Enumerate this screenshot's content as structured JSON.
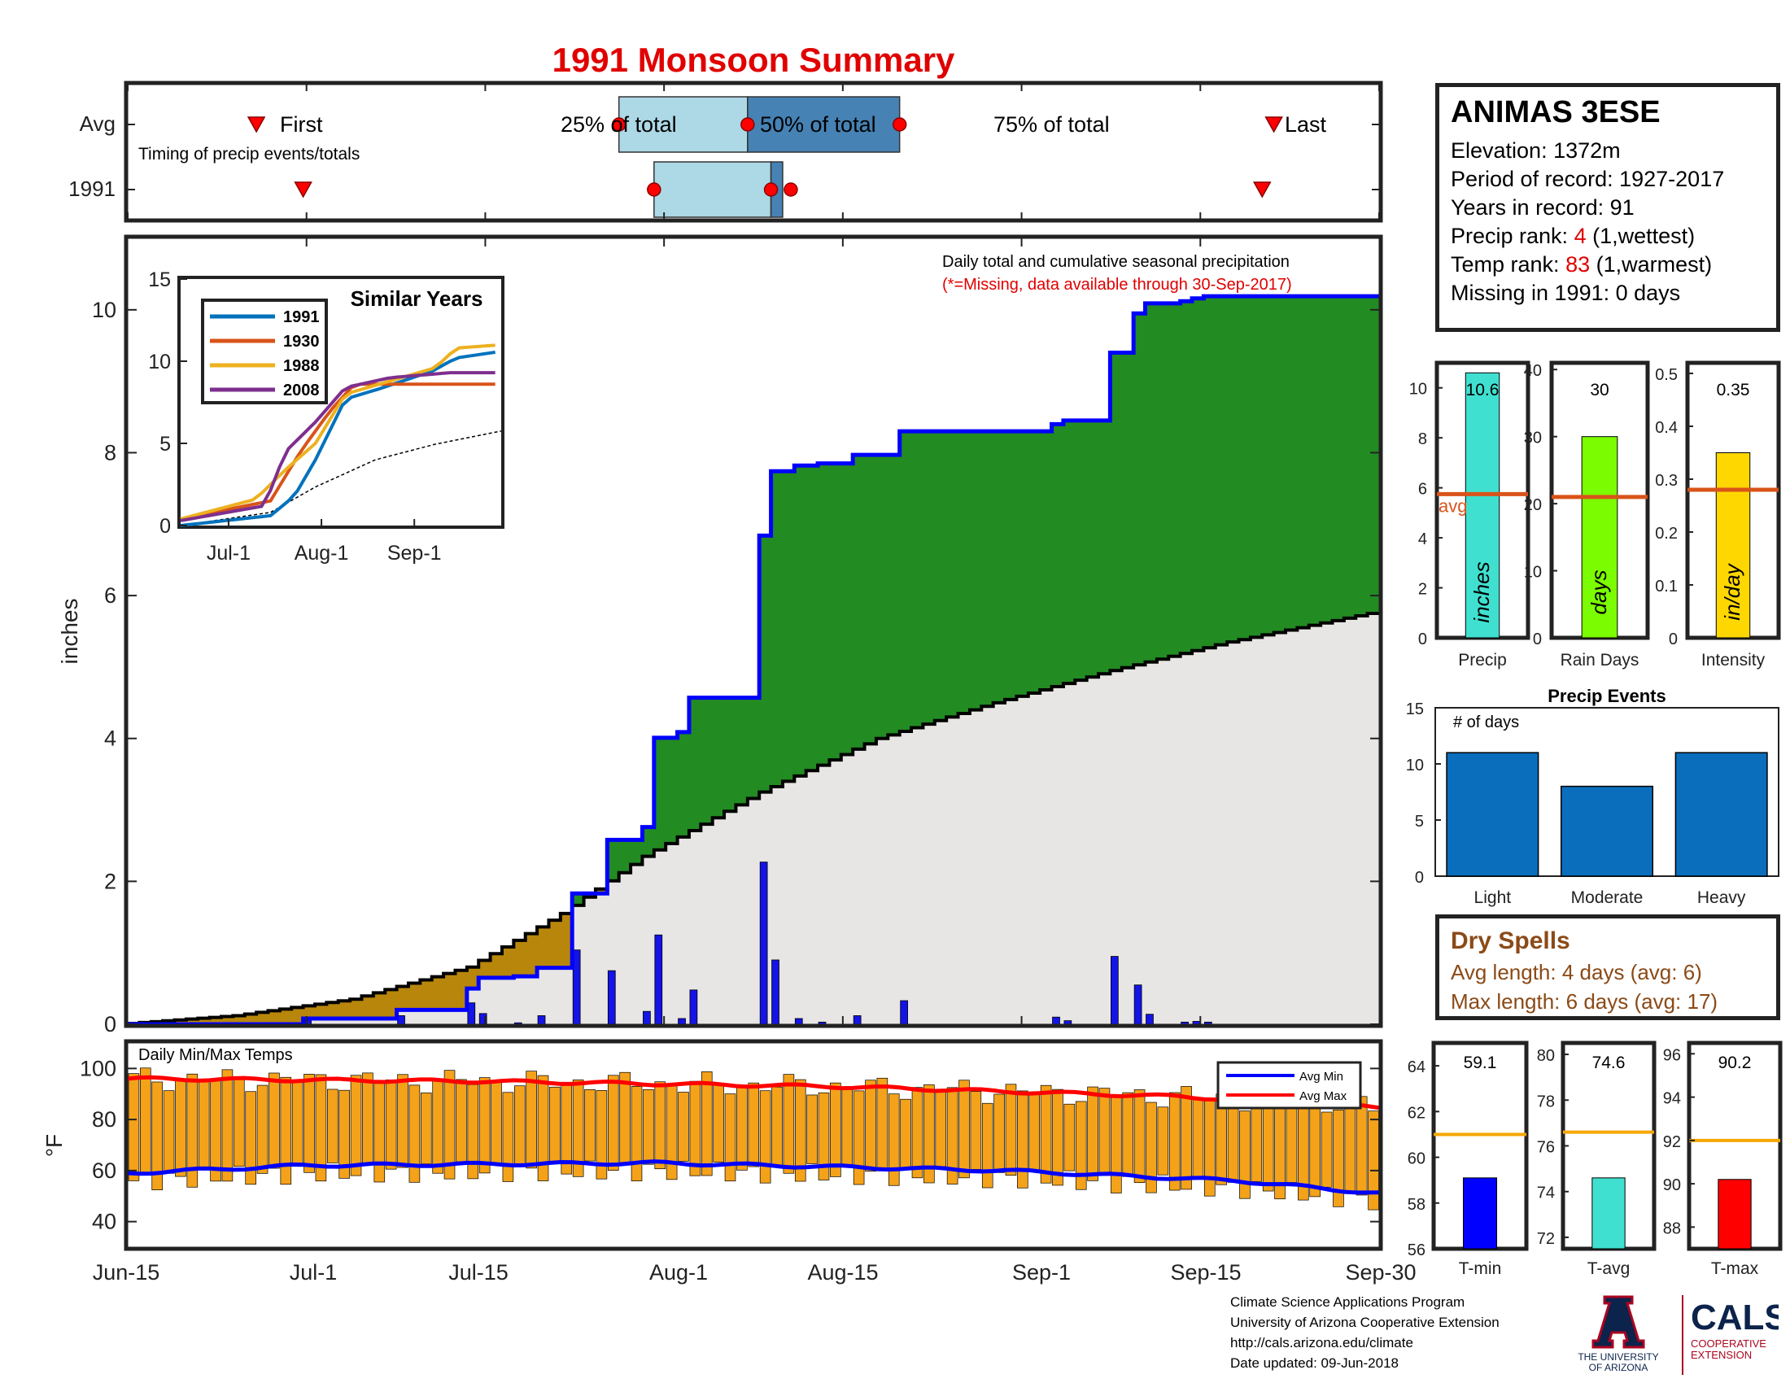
{
  "title": "1991 Monsoon Summary",
  "colors": {
    "title": "#e00000",
    "cumulative_blue": "#0000ff",
    "above_avg_green": "#228b22",
    "below_avg_brown": "#b8860b",
    "avg_fill_gray": "#e8e6e4",
    "precip_bar": "#1414e6",
    "temp_bar": "#f4a21a",
    "avg_max_red": "#ff0000",
    "avg_min_blue": "#0000ff",
    "light_blue": "#add8e6",
    "steel_blue": "#4682b4",
    "event_bar": "#0a6ebd",
    "avg_line": "#d95319"
  },
  "timing": {
    "row_labels": [
      "Avg",
      "1991"
    ],
    "subtitle": "Timing of precip events/totals",
    "first_label": "First",
    "last_label": "Last",
    "pct25_label": "25% of total",
    "pct50_label": "50% of total",
    "pct75_label": "75% of total",
    "avg": {
      "first": "Jun-26",
      "p25": "Jul-27",
      "p50": "Aug-07",
      "p75": "Aug-20",
      "last": "Sep-21"
    },
    "y1991": {
      "first": "Jun-30",
      "p25": "Jul-30",
      "p50": "Aug-09",
      "p75": "Aug-10",
      "last": "Sep-20"
    }
  },
  "main_panel": {
    "annotation_line1": "Daily total and cumulative seasonal precipitation",
    "annotation_line2": "(*=Missing, data available through 30-Sep-2017)",
    "ylabel": "inches",
    "y_ticks": [
      "0",
      "2",
      "4",
      "6",
      "8",
      "10"
    ],
    "x_ticks": [
      "Jun-15",
      "Jul-1",
      "Jul-15",
      "Aug-1",
      "Aug-15",
      "Sep-1",
      "Sep-15",
      "Sep-30"
    ]
  },
  "similar_years": {
    "title": "Similar Years",
    "legend": [
      "1991",
      "1930",
      "1988",
      "2008"
    ],
    "colors": [
      "#0072bd",
      "#d95319",
      "#edb120",
      "#7e2f8e"
    ],
    "y_ticks": [
      "0",
      "5",
      "10",
      "15"
    ],
    "x_ticks": [
      "Jul-1",
      "Aug-1",
      "Sep-1"
    ]
  },
  "temps_panel": {
    "title": "Daily Min/Max Temps",
    "ylabel": "°F",
    "y_ticks": [
      "40",
      "60",
      "80",
      "100"
    ],
    "legend": [
      "Avg Min",
      "Avg Max"
    ]
  },
  "station": {
    "name": "ANIMAS 3ESE",
    "elevation_label": "Elevation: 1372m",
    "period_label": "Period of record: 1927-2017",
    "years_label": "Years in record: 91",
    "precip_rank_prefix": "Precip rank: ",
    "precip_rank_value": "4",
    "precip_rank_suffix": " (1,wettest)",
    "temp_rank_prefix": "Temp rank: ",
    "temp_rank_value": "83",
    "temp_rank_suffix": " (1,warmest)",
    "missing_label": "Missing in 1991: 0 days"
  },
  "stat_bars": [
    {
      "name": "Precip",
      "value_label": "10.6",
      "unit": "inches",
      "color": "#40e0d0",
      "avg_label": "avg",
      "y_ticks": [
        "0",
        "2",
        "4",
        "6",
        "8",
        "10"
      ]
    },
    {
      "name": "Rain Days",
      "value_label": "30",
      "unit": "days",
      "color": "#7cfc00",
      "y_ticks": [
        "0",
        "10",
        "20",
        "30",
        "40"
      ]
    },
    {
      "name": "Intensity",
      "value_label": "0.35",
      "unit": "in/day",
      "color": "#ffd700",
      "y_ticks": [
        "0",
        "0.1",
        "0.2",
        "0.3",
        "0.4",
        "0.5"
      ]
    }
  ],
  "precip_events": {
    "title": "Precip Events",
    "ylabel": "# of days",
    "y_ticks": [
      "0",
      "5",
      "10",
      "15"
    ]
  },
  "dry_spells": {
    "title": "Dry Spells",
    "avg_length_label": "Avg length: 4 days (avg: 6)",
    "max_length_label": "Max length: 6 days (avg: 17)"
  },
  "temp_bars": [
    {
      "name": "T-min",
      "value_label": "59.1",
      "color": "#0000ff",
      "y_ticks": [
        "56",
        "58",
        "60",
        "62",
        "64"
      ]
    },
    {
      "name": "T-avg",
      "value_label": "74.6",
      "color": "#40e0d0",
      "y_ticks": [
        "72",
        "74",
        "76",
        "78",
        "80"
      ]
    },
    {
      "name": "T-max",
      "value_label": "90.2",
      "color": "#ff0000",
      "y_ticks": [
        "88",
        "90",
        "92",
        "94",
        "96"
      ]
    }
  ],
  "footer": {
    "line1": "Climate Science Applications Program",
    "line2": "University of Arizona Cooperative Extension",
    "line3": "http://cals.arizona.edu/climate",
    "line4": " Date updated: 09-Jun-2018"
  },
  "logos": {
    "ua_line1": "THE UNIVERSITY",
    "ua_line2": "OF ARIZONA",
    "cals_text": "CALS",
    "cals_line1": "COOPERATIVE",
    "cals_line2": "EXTENSION"
  },
  "chart_data": [
    {
      "type": "area",
      "name": "cumulative_precip",
      "x_start": "Jun-15",
      "x_end": "Sep-30",
      "ylim": [
        0,
        11
      ],
      "daily_precip_events": [
        {
          "day": "Jun-30",
          "value": 0.08
        },
        {
          "day": "Jul-8",
          "value": 0.12
        },
        {
          "day": "Jul-14",
          "value": 0.3
        },
        {
          "day": "Jul-15",
          "value": 0.15
        },
        {
          "day": "Jul-18",
          "value": 0.02
        },
        {
          "day": "Jul-18",
          "value": 0.02
        },
        {
          "day": "Jul-18",
          "value": 0.02
        },
        {
          "day": "Jul-18",
          "value": 0.02
        },
        {
          "day": "Jul-18",
          "value": 0.02
        },
        {
          "day": "Jul-18",
          "value": 0.02
        },
        {
          "day": "Jul-18",
          "value": 0.02
        }
      ],
      "daily_precip": [
        {
          "doy": 15,
          "value": 0.08
        },
        {
          "doy": 23,
          "value": 0.12
        },
        {
          "doy": 29,
          "value": 0.3
        },
        {
          "doy": 30,
          "value": 0.15
        },
        {
          "doy": 33,
          "value": 0.02
        },
        {
          "doy": 35,
          "value": 0.12
        },
        {
          "doy": 38,
          "value": 1.04
        },
        {
          "doy": 41,
          "value": 0.75
        },
        {
          "doy": 44,
          "value": 0.18
        },
        {
          "doy": 45,
          "value": 1.25
        },
        {
          "doy": 47,
          "value": 0.08
        },
        {
          "doy": 48,
          "value": 0.48
        },
        {
          "doy": 54,
          "value": 2.27
        },
        {
          "doy": 55,
          "value": 0.9
        },
        {
          "doy": 57,
          "value": 0.08
        },
        {
          "doy": 59,
          "value": 0.03
        },
        {
          "doy": 62,
          "value": 0.12
        },
        {
          "doy": 66,
          "value": 0.33
        },
        {
          "doy": 79,
          "value": 0.1
        },
        {
          "doy": 80,
          "value": 0.05
        },
        {
          "doy": 84,
          "value": 0.95
        },
        {
          "doy": 86,
          "value": 0.55
        },
        {
          "doy": 87,
          "value": 0.14
        },
        {
          "doy": 90,
          "value": 0.03
        },
        {
          "doy": 91,
          "value": 0.04
        },
        {
          "doy": 92,
          "value": 0.03
        }
      ],
      "cumulative_1991": [
        {
          "doy": 0,
          "value": 0
        },
        {
          "doy": 15,
          "value": 0.08
        },
        {
          "doy": 23,
          "value": 0.2
        },
        {
          "doy": 29,
          "value": 0.5
        },
        {
          "doy": 30,
          "value": 0.65
        },
        {
          "doy": 33,
          "value": 0.67
        },
        {
          "doy": 35,
          "value": 0.79
        },
        {
          "doy": 38,
          "value": 1.83
        },
        {
          "doy": 41,
          "value": 2.58
        },
        {
          "doy": 44,
          "value": 2.76
        },
        {
          "doy": 45,
          "value": 4.01
        },
        {
          "doy": 47,
          "value": 4.09
        },
        {
          "doy": 48,
          "value": 4.57
        },
        {
          "doy": 54,
          "value": 6.84
        },
        {
          "doy": 55,
          "value": 7.74
        },
        {
          "doy": 57,
          "value": 7.82
        },
        {
          "doy": 59,
          "value": 7.85
        },
        {
          "doy": 62,
          "value": 7.97
        },
        {
          "doy": 66,
          "value": 8.3
        },
        {
          "doy": 79,
          "value": 8.4
        },
        {
          "doy": 80,
          "value": 8.45
        },
        {
          "doy": 84,
          "value": 9.4
        },
        {
          "doy": 86,
          "value": 9.95
        },
        {
          "doy": 87,
          "value": 10.09
        },
        {
          "doy": 90,
          "value": 10.12
        },
        {
          "doy": 91,
          "value": 10.16
        },
        {
          "doy": 92,
          "value": 10.19
        },
        {
          "doy": 107,
          "value": 10.6
        }
      ],
      "cumulative_avg": [
        {
          "doy": 0,
          "value": 0
        },
        {
          "doy": 10,
          "value": 0.12
        },
        {
          "doy": 20,
          "value": 0.35
        },
        {
          "doy": 30,
          "value": 0.8
        },
        {
          "doy": 38,
          "value": 1.55
        },
        {
          "doy": 45,
          "value": 2.35
        },
        {
          "doy": 55,
          "value": 3.25
        },
        {
          "doy": 65,
          "value": 4.0
        },
        {
          "doy": 75,
          "value": 4.5
        },
        {
          "doy": 85,
          "value": 4.95
        },
        {
          "doy": 95,
          "value": 5.35
        },
        {
          "doy": 107,
          "value": 5.75
        }
      ]
    },
    {
      "type": "line",
      "name": "similar_years",
      "x_ticks": [
        "Jul-1",
        "Aug-1",
        "Sep-1"
      ],
      "ylim": [
        0,
        15
      ],
      "series": [
        {
          "name": "1991",
          "values": [
            {
              "doy": 0,
              "value": 0
            },
            {
              "doy": 30,
              "value": 0.6
            },
            {
              "doy": 38,
              "value": 1.8
            },
            {
              "doy": 45,
              "value": 4.0
            },
            {
              "doy": 55,
              "value": 7.7
            },
            {
              "doy": 66,
              "value": 8.3
            },
            {
              "doy": 84,
              "value": 9.4
            },
            {
              "doy": 92,
              "value": 10.2
            },
            {
              "doy": 107,
              "value": 10.6
            }
          ]
        },
        {
          "name": "1930",
          "values": [
            {
              "doy": 0,
              "value": 0.4
            },
            {
              "doy": 30,
              "value": 1.5
            },
            {
              "doy": 40,
              "value": 4.5
            },
            {
              "doy": 50,
              "value": 7.0
            },
            {
              "doy": 58,
              "value": 8.6
            },
            {
              "doy": 65,
              "value": 8.6
            },
            {
              "doy": 107,
              "value": 8.6
            }
          ]
        },
        {
          "name": "1988",
          "values": [
            {
              "doy": 0,
              "value": 0.4
            },
            {
              "doy": 25,
              "value": 1.6
            },
            {
              "doy": 35,
              "value": 3.4
            },
            {
              "doy": 45,
              "value": 5.0
            },
            {
              "doy": 55,
              "value": 8.0
            },
            {
              "doy": 70,
              "value": 8.8
            },
            {
              "doy": 85,
              "value": 9.6
            },
            {
              "doy": 92,
              "value": 10.8
            },
            {
              "doy": 107,
              "value": 11.0
            }
          ]
        },
        {
          "name": "2008",
          "values": [
            {
              "doy": 0,
              "value": 0.3
            },
            {
              "doy": 28,
              "value": 1.2
            },
            {
              "doy": 35,
              "value": 4.5
            },
            {
              "doy": 45,
              "value": 6.3
            },
            {
              "doy": 55,
              "value": 8.4
            },
            {
              "doy": 70,
              "value": 9.0
            },
            {
              "doy": 90,
              "value": 9.3
            },
            {
              "doy": 107,
              "value": 9.3
            }
          ]
        }
      ],
      "average_dashed": [
        {
          "doy": 0,
          "value": 0
        },
        {
          "doy": 30,
          "value": 0.8
        },
        {
          "doy": 45,
          "value": 2.35
        },
        {
          "doy": 65,
          "value": 4.0
        },
        {
          "doy": 85,
          "value": 4.95
        },
        {
          "doy": 107,
          "value": 5.75
        }
      ]
    },
    {
      "type": "bar",
      "name": "daily_temps",
      "ylim": [
        30,
        110
      ],
      "avg_max": [
        {
          "doy": 0,
          "value": 96
        },
        {
          "doy": 30,
          "value": 95
        },
        {
          "doy": 60,
          "value": 93
        },
        {
          "doy": 90,
          "value": 89
        },
        {
          "doy": 107,
          "value": 85
        }
      ],
      "avg_min": [
        {
          "doy": 0,
          "value": 59
        },
        {
          "doy": 15,
          "value": 62
        },
        {
          "doy": 45,
          "value": 63
        },
        {
          "doy": 75,
          "value": 60
        },
        {
          "doy": 95,
          "value": 56
        },
        {
          "doy": 107,
          "value": 51
        }
      ]
    },
    {
      "type": "bar",
      "name": "precip_total",
      "categories": [
        "Precip"
      ],
      "values": [
        10.6
      ],
      "avg": 5.75,
      "ylim": [
        0,
        11
      ]
    },
    {
      "type": "bar",
      "name": "rain_days",
      "categories": [
        "Rain Days"
      ],
      "values": [
        30
      ],
      "avg": 21,
      "ylim": [
        0,
        40
      ]
    },
    {
      "type": "bar",
      "name": "intensity",
      "categories": [
        "Intensity"
      ],
      "values": [
        0.35
      ],
      "avg": 0.28,
      "ylim": [
        0,
        0.5
      ]
    },
    {
      "type": "bar",
      "name": "precip_events",
      "title": "Precip Events",
      "categories": [
        "Light",
        "Moderate",
        "Heavy"
      ],
      "values": [
        11,
        8,
        11
      ],
      "ylim": [
        0,
        15
      ]
    },
    {
      "type": "bar",
      "name": "temperature_summary",
      "categories": [
        "T-min",
        "T-avg",
        "T-max"
      ],
      "values": [
        59.1,
        74.6,
        90.2
      ],
      "averages": [
        61,
        76.6,
        92
      ],
      "ylims": [
        [
          56,
          65
        ],
        [
          71.5,
          80.5
        ],
        [
          87,
          96.5
        ]
      ]
    }
  ]
}
